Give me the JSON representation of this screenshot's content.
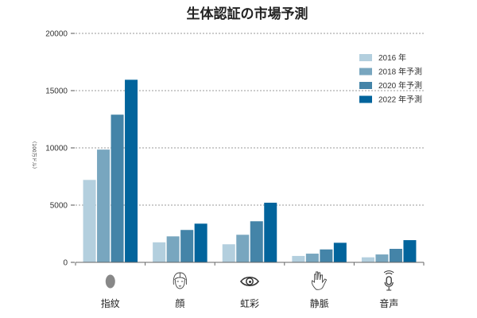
{
  "chart_data": {
    "type": "bar",
    "title": "生体認証の市場予測",
    "xlabel": "",
    "ylabel": "（100万ドル）",
    "ylim": [
      0,
      20000
    ],
    "yticks": [
      0,
      5000,
      10000,
      15000,
      20000
    ],
    "grid": true,
    "legend_position": "top-right",
    "categories": [
      "指紋",
      "顔",
      "虹彩",
      "静脈",
      "音声"
    ],
    "category_icons": [
      "fingerprint-icon",
      "face-icon",
      "eye-icon",
      "hand-icon",
      "microphone-icon"
    ],
    "series": [
      {
        "name": "2016 年",
        "color": "#b3cfde",
        "values": [
          7200,
          1750,
          1580,
          560,
          440
        ]
      },
      {
        "name": "2018 年予測",
        "color": "#78a6bf",
        "values": [
          9850,
          2270,
          2410,
          760,
          690
        ]
      },
      {
        "name": "2020 年予測",
        "color": "#4484a8",
        "values": [
          12900,
          2830,
          3590,
          1130,
          1180
        ]
      },
      {
        "name": "2022 年予測",
        "color": "#02649c",
        "values": [
          15950,
          3380,
          5210,
          1710,
          1940
        ]
      }
    ]
  }
}
